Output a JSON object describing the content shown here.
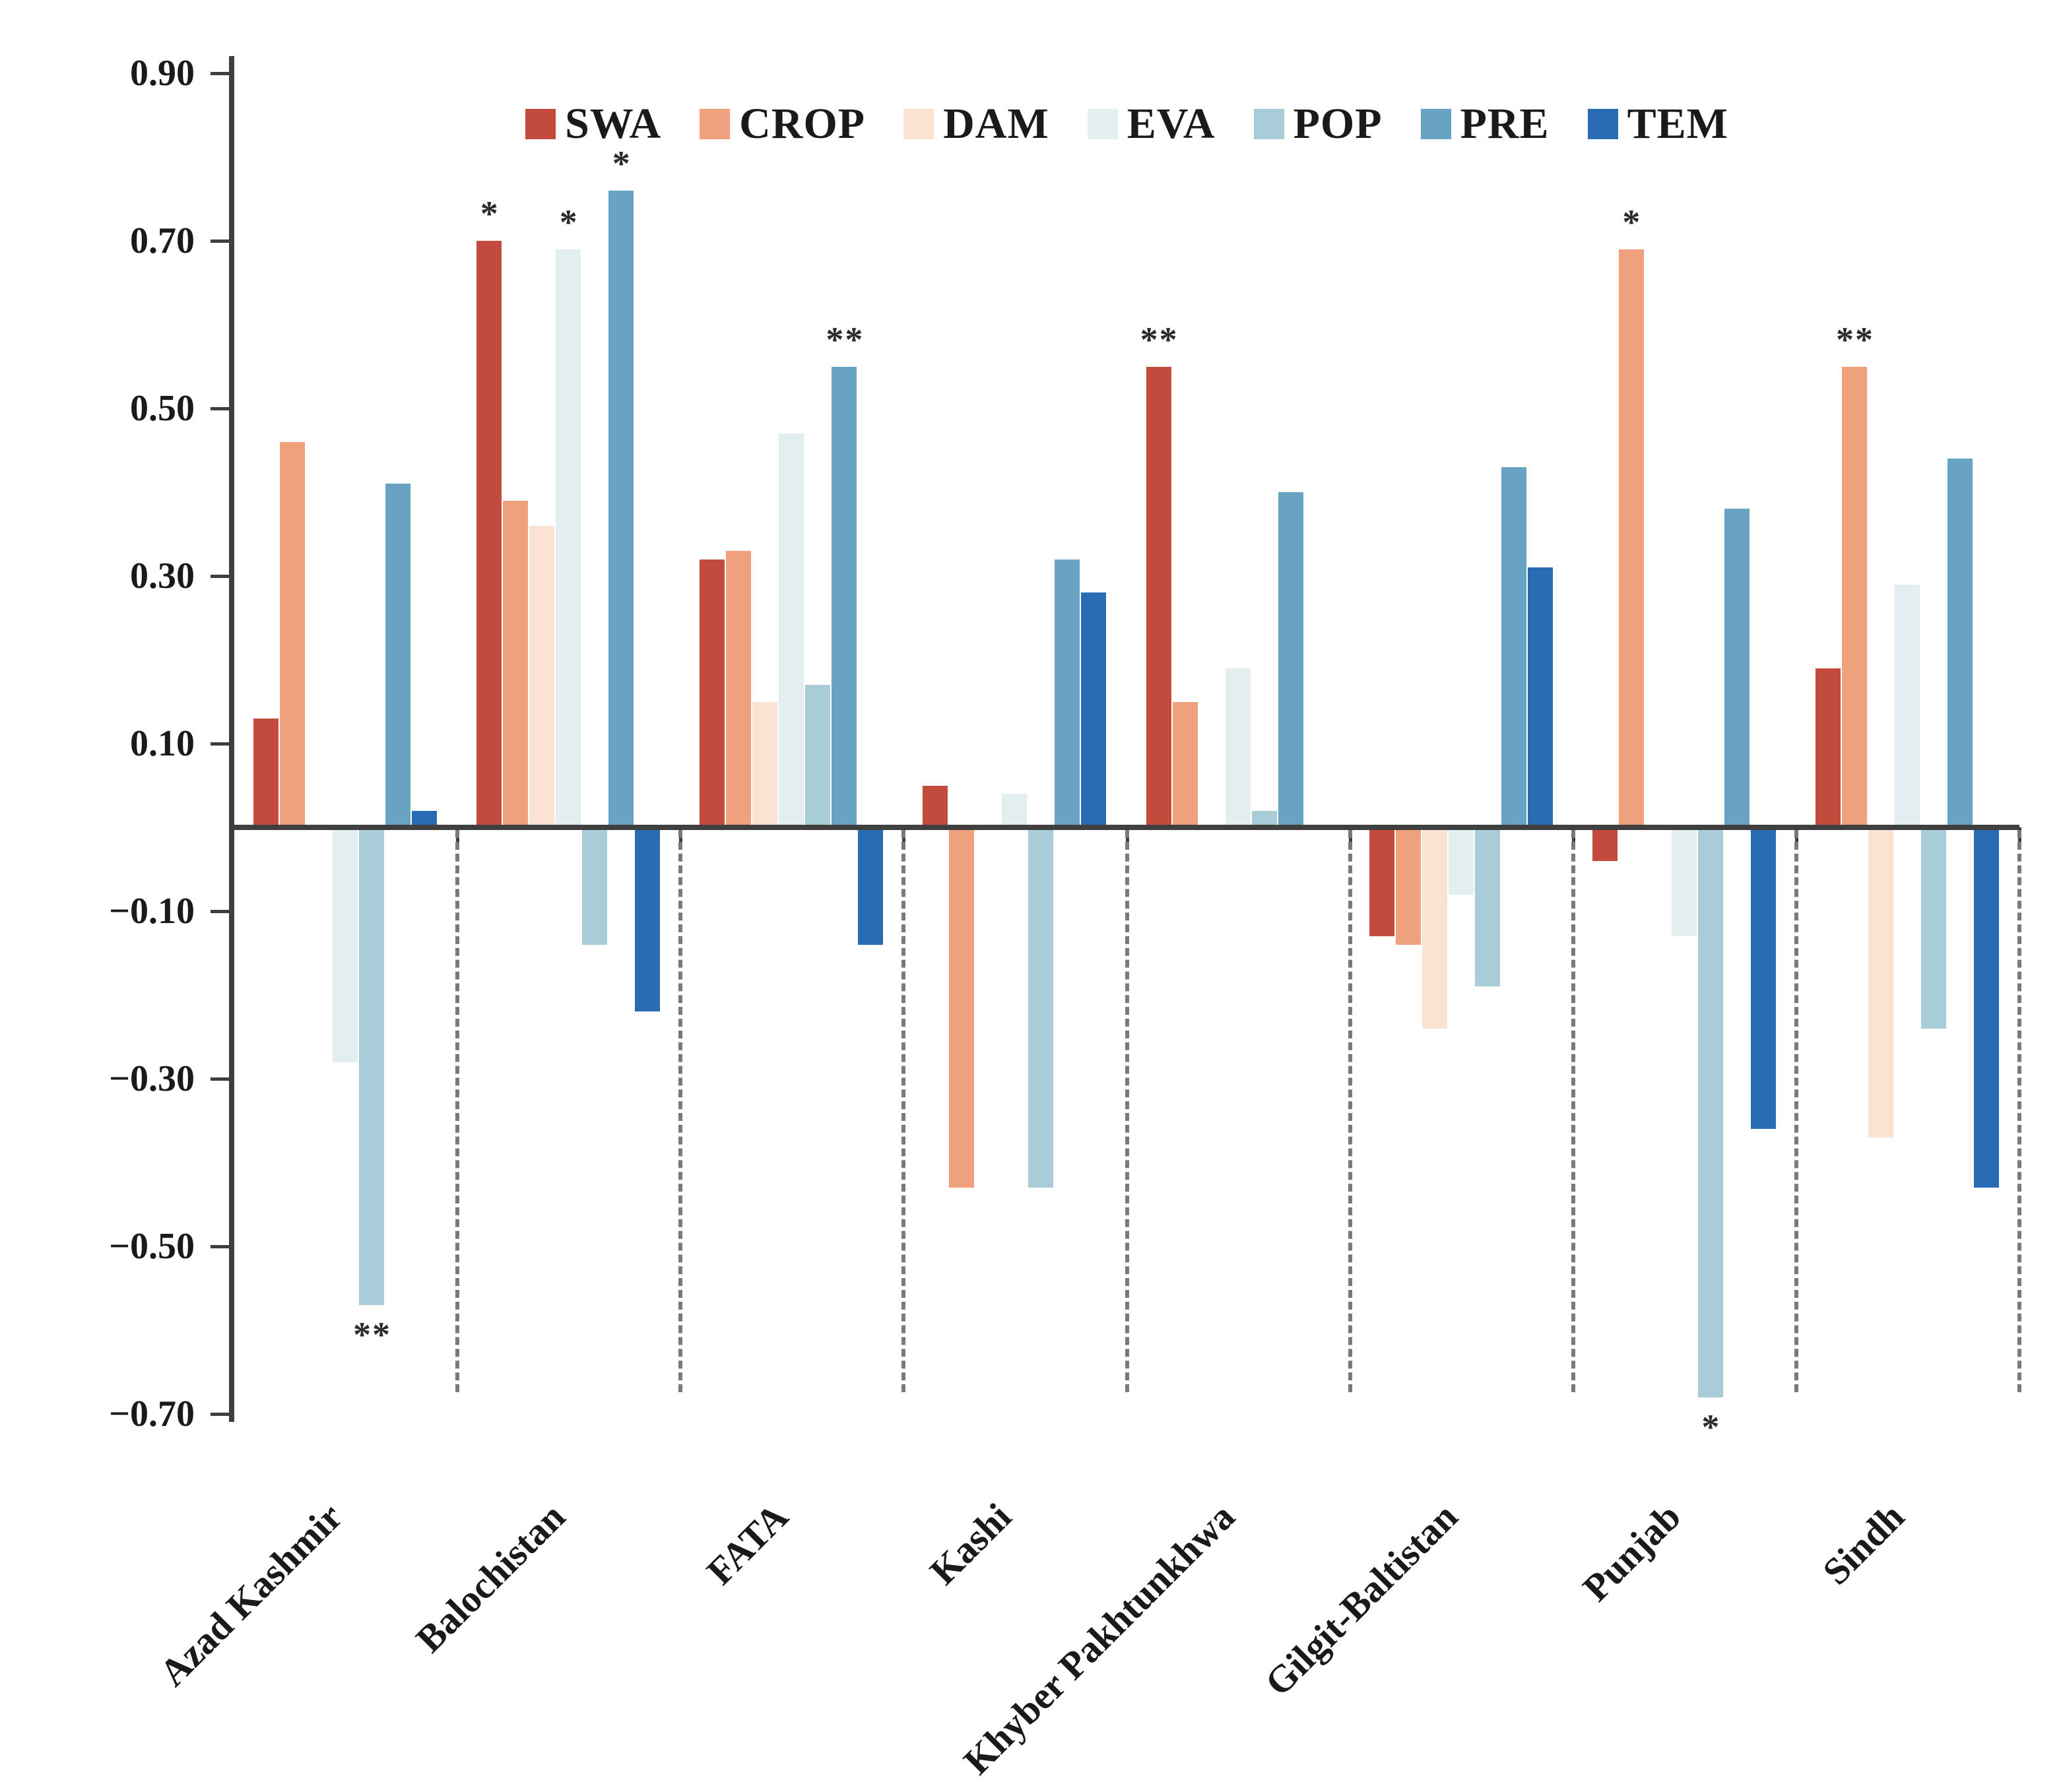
{
  "chart_data": {
    "type": "bar",
    "title": "",
    "xlabel": "",
    "ylabel": "",
    "legend_position": "top",
    "grid": false,
    "group_separators": "dashed",
    "ylim": [
      -0.7,
      0.9
    ],
    "yticks": [
      "0.90",
      "0.70",
      "0.50",
      "0.30",
      "0.10",
      "−0.10",
      "−0.30",
      "−0.50",
      "−0.70"
    ],
    "ytick_values": [
      0.9,
      0.7,
      0.5,
      0.3,
      0.1,
      -0.1,
      -0.3,
      -0.5,
      -0.7
    ],
    "categories": [
      "Azad Kashmir",
      "Balochistan",
      "FATA",
      "Kashi",
      "Khyber Pakhtunkhwa",
      "Gilgit-Baltistan",
      "Punjab",
      "Sindh"
    ],
    "series": [
      {
        "name": "SWA",
        "color": "#c24b3e",
        "values": [
          0.13,
          0.7,
          0.32,
          0.05,
          0.55,
          -0.13,
          -0.04,
          0.19
        ],
        "sig": [
          null,
          "*",
          null,
          null,
          "**",
          null,
          null,
          null
        ]
      },
      {
        "name": "CROP",
        "color": "#eea17c",
        "values": [
          0.46,
          0.39,
          0.33,
          -0.43,
          0.15,
          -0.14,
          0.69,
          0.55
        ],
        "sig": [
          null,
          null,
          null,
          null,
          null,
          null,
          "*",
          "**"
        ]
      },
      {
        "name": "DAM",
        "color": "#fae3d2",
        "values": [
          null,
          0.36,
          0.15,
          null,
          null,
          -0.24,
          null,
          -0.37
        ],
        "sig": [
          null,
          null,
          null,
          null,
          null,
          null,
          null,
          null
        ]
      },
      {
        "name": "EVA",
        "color": "#e3eef0",
        "values": [
          -0.28,
          0.69,
          0.47,
          0.04,
          0.19,
          -0.08,
          -0.13,
          0.29
        ],
        "sig": [
          null,
          "*",
          null,
          null,
          null,
          null,
          null,
          null
        ]
      },
      {
        "name": "POP",
        "color": "#a9ccd9",
        "values": [
          -0.57,
          -0.14,
          0.17,
          -0.43,
          0.02,
          -0.19,
          -0.68,
          -0.24
        ],
        "sig": [
          "**",
          null,
          null,
          null,
          null,
          null,
          "*",
          null
        ]
      },
      {
        "name": "PRE",
        "color": "#68a3c3",
        "values": [
          0.41,
          0.76,
          0.55,
          0.32,
          0.4,
          0.43,
          0.38,
          0.44
        ],
        "sig": [
          null,
          "*",
          "**",
          null,
          null,
          null,
          null,
          null
        ]
      },
      {
        "name": "TEM",
        "color": "#2a6cb3",
        "values": [
          0.02,
          -0.22,
          -0.14,
          0.28,
          null,
          0.31,
          -0.36,
          -0.43
        ],
        "sig": [
          null,
          null,
          null,
          null,
          null,
          null,
          null,
          null
        ]
      }
    ]
  }
}
